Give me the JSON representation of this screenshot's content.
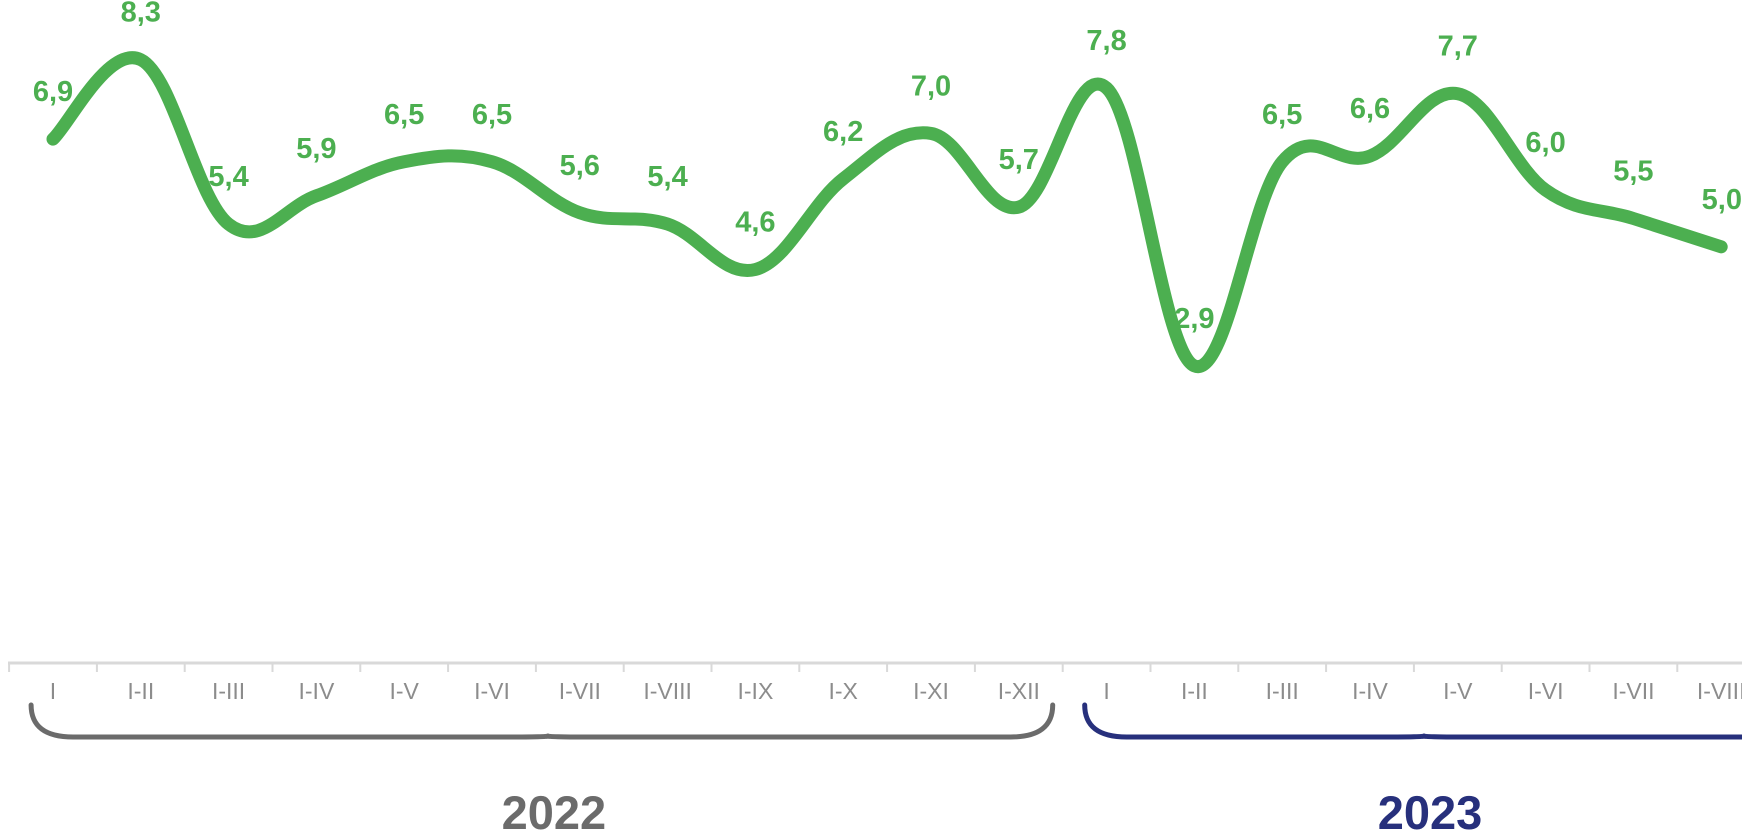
{
  "chart_data": {
    "type": "line",
    "x": [
      "I",
      "I-II",
      "I-III",
      "I-IV",
      "I-V",
      "I-VI",
      "I-VII",
      "I-VIII",
      "I-IX",
      "I-X",
      "I-XI",
      "I-XII",
      "I",
      "I-II",
      "I-III",
      "I-IV",
      "I-V",
      "I-VI",
      "I-VII",
      "I-VIII"
    ],
    "values": [
      6.9,
      8.3,
      5.4,
      5.9,
      6.5,
      6.5,
      5.6,
      5.4,
      4.6,
      6.2,
      7.0,
      5.7,
      7.8,
      2.9,
      6.5,
      6.6,
      7.7,
      6.0,
      5.5,
      5.0
    ],
    "data_labels": [
      "6,9",
      "8,3",
      "5,4",
      "5,9",
      "6,5",
      "6,5",
      "5,6",
      "5,4",
      "4,6",
      "6,2",
      "7,0",
      "5,7",
      "7,8",
      "2,9",
      "6,5",
      "6,6",
      "7,7",
      "6,0",
      "5,5",
      "5,0"
    ],
    "groups": [
      {
        "label": "2022",
        "count": 12,
        "color": "#6b6b6b"
      },
      {
        "label": "2023",
        "count": 8,
        "color": "#27307c"
      }
    ],
    "series_color": "#4caf50",
    "tick_color": "#8c8c8c",
    "axis_color": "#d9d9d9",
    "grid": false,
    "legend": "none"
  }
}
